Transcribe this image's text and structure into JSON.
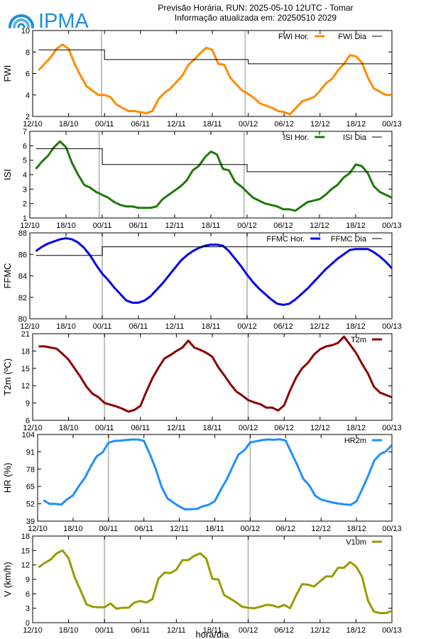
{
  "header": {
    "line1": "Previsão Horária, RUN: 2025-05-10 12UTC - Tomar",
    "line2": "Informação atualizada em: 20250510 2029",
    "logo_text": "IPMA"
  },
  "colors": {
    "fwi": "#ff8c00",
    "isi": "#1e7a0a",
    "ffmc": "#0000ee",
    "t2m": "#8b0000",
    "hr2m": "#1e90ff",
    "v10m": "#9a9a00",
    "daily": "#000000",
    "day_separator": "#c0c0c0",
    "logo": "#1e8fd6"
  },
  "xlabel": "hora/dia",
  "chart_data": [
    {
      "id": "fwi",
      "type": "line",
      "ylabel": "FWI",
      "ylim": [
        2,
        10
      ],
      "yticks": [
        2,
        4,
        6,
        8,
        10
      ],
      "xlim": [
        0,
        60
      ],
      "xticks": [
        "12/10",
        "18/10",
        "00/11",
        "06/11",
        "12/11",
        "18/11",
        "00/12",
        "06/12",
        "12/12",
        "18/12",
        "00/13"
      ],
      "legend_position": "top-right",
      "series": [
        {
          "name": "FWI Hor.",
          "style": "hourly",
          "color_key": "fwi",
          "x": [
            1,
            2,
            3,
            4,
            5,
            6,
            7,
            8,
            9,
            10,
            11,
            12,
            13,
            14,
            15,
            16,
            17,
            18,
            19,
            20,
            21,
            22,
            23,
            24,
            25,
            26,
            27,
            28,
            29,
            30,
            31,
            32,
            33,
            34,
            35,
            36,
            37,
            38,
            39,
            40,
            41,
            42,
            43,
            44,
            45,
            46,
            47,
            48,
            49,
            50,
            51,
            52,
            53,
            54,
            55,
            56,
            57,
            58,
            59,
            60
          ],
          "values": [
            6.3,
            6.9,
            7.5,
            8.3,
            8.7,
            8.3,
            6.9,
            5.8,
            4.8,
            4.4,
            4.0,
            4.0,
            3.8,
            3.1,
            2.8,
            2.5,
            2.5,
            2.4,
            2.3,
            2.5,
            3.6,
            4.2,
            4.6,
            5.2,
            5.8,
            6.8,
            7.3,
            7.9,
            8.4,
            8.2,
            6.9,
            6.8,
            5.6,
            5.0,
            4.4,
            4.1,
            3.7,
            3.2,
            3.0,
            2.8,
            2.5,
            2.4,
            2.2,
            2.8,
            3.4,
            3.6,
            3.8,
            4.4,
            5.1,
            5.5,
            6.3,
            6.9,
            7.7,
            7.6,
            7.0,
            5.6,
            4.6,
            4.3,
            4.0,
            4.0
          ]
        },
        {
          "name": "FWI Dia",
          "style": "daily",
          "color_key": "daily",
          "segments": [
            [
              1,
              12,
              8.2
            ],
            [
              12,
              36,
              7.3
            ],
            [
              36,
              60,
              6.9
            ]
          ]
        }
      ]
    },
    {
      "id": "isi",
      "type": "line",
      "ylabel": "ISI",
      "ylim": [
        1,
        7
      ],
      "yticks": [
        1,
        2,
        3,
        4,
        5,
        6,
        7
      ],
      "xlim": [
        0,
        60
      ],
      "xticks": [
        "12/10",
        "18/10",
        "00/11",
        "06/11",
        "12/11",
        "18/11",
        "00/12",
        "06/12",
        "12/12",
        "18/12",
        "00/13"
      ],
      "legend_position": "top-right",
      "series": [
        {
          "name": "ISI Hor.",
          "style": "hourly",
          "color_key": "isi",
          "x": [
            1,
            2,
            3,
            4,
            5,
            6,
            7,
            8,
            9,
            10,
            11,
            12,
            13,
            14,
            15,
            16,
            17,
            18,
            19,
            20,
            21,
            22,
            23,
            24,
            25,
            26,
            27,
            28,
            29,
            30,
            31,
            32,
            33,
            34,
            35,
            36,
            37,
            38,
            39,
            40,
            41,
            42,
            43,
            44,
            45,
            46,
            47,
            48,
            49,
            50,
            51,
            52,
            53,
            54,
            55,
            56,
            57,
            58,
            59,
            60
          ],
          "values": [
            4.4,
            4.9,
            5.3,
            5.9,
            6.3,
            5.9,
            4.8,
            4.0,
            3.3,
            3.1,
            2.8,
            2.6,
            2.4,
            2.1,
            1.9,
            1.8,
            1.8,
            1.7,
            1.7,
            1.7,
            1.8,
            2.3,
            2.6,
            2.9,
            3.2,
            3.6,
            4.3,
            4.6,
            5.2,
            5.6,
            5.4,
            4.4,
            4.3,
            3.5,
            3.2,
            2.8,
            2.4,
            2.2,
            2.0,
            1.9,
            1.8,
            1.6,
            1.6,
            1.5,
            1.8,
            2.1,
            2.2,
            2.3,
            2.6,
            3.0,
            3.3,
            3.8,
            4.1,
            4.7,
            4.6,
            4.1,
            3.2,
            2.8,
            2.6,
            2.4
          ]
        },
        {
          "name": "ISI Dia",
          "style": "daily",
          "color_key": "daily",
          "segments": [
            [
              1,
              12,
              5.8
            ],
            [
              12,
              36,
              4.7
            ],
            [
              36,
              60,
              4.2
            ]
          ]
        }
      ]
    },
    {
      "id": "ffmc",
      "type": "line",
      "ylabel": "FFMC",
      "ylim": [
        80,
        88
      ],
      "yticks": [
        80,
        82,
        84,
        86,
        88
      ],
      "xlim": [
        0,
        60
      ],
      "xticks": [
        "12/10",
        "18/10",
        "00/11",
        "06/11",
        "12/11",
        "18/11",
        "00/12",
        "06/12",
        "12/12",
        "18/12",
        "00/13"
      ],
      "legend_position": "top-right",
      "series": [
        {
          "name": "FFMC Hor.",
          "style": "hourly",
          "color_key": "ffmc",
          "x": [
            1,
            2,
            3,
            4,
            5,
            6,
            7,
            8,
            9,
            10,
            11,
            12,
            13,
            14,
            15,
            16,
            17,
            18,
            19,
            20,
            21,
            22,
            23,
            24,
            25,
            26,
            27,
            28,
            29,
            30,
            31,
            32,
            33,
            34,
            35,
            36,
            37,
            38,
            39,
            40,
            41,
            42,
            43,
            44,
            45,
            46,
            47,
            48,
            49,
            50,
            51,
            52,
            53,
            54,
            55,
            56,
            57,
            58,
            59,
            60
          ],
          "values": [
            86.3,
            86.7,
            87.0,
            87.2,
            87.4,
            87.5,
            87.4,
            87.1,
            86.6,
            85.9,
            85.0,
            84.2,
            83.6,
            82.9,
            82.3,
            81.7,
            81.5,
            81.5,
            81.7,
            82.1,
            82.7,
            83.3,
            84.0,
            84.7,
            85.4,
            85.9,
            86.3,
            86.6,
            86.8,
            86.9,
            86.9,
            86.8,
            86.3,
            85.6,
            84.9,
            84.1,
            83.4,
            82.8,
            82.3,
            81.8,
            81.4,
            81.3,
            81.4,
            81.8,
            82.3,
            82.8,
            83.4,
            84.0,
            84.6,
            85.1,
            85.6,
            86.0,
            86.4,
            86.5,
            86.5,
            86.5,
            86.2,
            85.8,
            85.3,
            84.7
          ]
        },
        {
          "name": "FFMC Dia",
          "style": "daily",
          "color_key": "daily",
          "segments": [
            [
              1,
              12,
              85.9
            ],
            [
              12,
              36,
              86.7
            ],
            [
              36,
              60,
              86.7
            ]
          ]
        }
      ]
    },
    {
      "id": "t2m",
      "type": "line",
      "ylabel": "T2m (ºC)",
      "ylim": [
        6,
        21
      ],
      "yticks": [
        6,
        9,
        12,
        15,
        18,
        21
      ],
      "xlim": [
        0,
        60
      ],
      "xticks": [
        "12/10",
        "18/10",
        "00/11",
        "06/11",
        "12/11",
        "18/11",
        "00/12",
        "06/12",
        "12/12",
        "18/12",
        "00/13"
      ],
      "legend_position": "top-right",
      "series": [
        {
          "name": "T2m",
          "style": "hourly",
          "color_key": "t2m",
          "x": [
            1,
            2,
            3,
            4,
            5,
            6,
            7,
            8,
            9,
            10,
            11,
            12,
            13,
            14,
            15,
            16,
            17,
            18,
            19,
            20,
            21,
            22,
            23,
            24,
            25,
            26,
            27,
            28,
            29,
            30,
            31,
            32,
            33,
            34,
            35,
            36,
            37,
            38,
            39,
            40,
            41,
            42,
            43,
            44,
            45,
            46,
            47,
            48,
            49,
            50,
            51,
            52,
            53,
            54,
            55,
            56,
            57,
            58,
            59,
            60
          ],
          "values": [
            18.8,
            18.8,
            18.6,
            18.4,
            17.5,
            16.5,
            15.0,
            13.5,
            11.8,
            10.6,
            10.0,
            9.0,
            8.7,
            8.4,
            8.0,
            7.5,
            7.8,
            8.5,
            11.0,
            13.3,
            15.1,
            16.7,
            17.3,
            18.0,
            18.6,
            19.8,
            18.6,
            18.2,
            17.7,
            17.0,
            15.2,
            13.8,
            12.3,
            11.0,
            10.3,
            9.5,
            9.1,
            8.8,
            8.2,
            8.2,
            7.7,
            8.6,
            11.2,
            13.4,
            15.0,
            16.0,
            17.4,
            18.3,
            18.8,
            19.0,
            19.4,
            20.5,
            19.1,
            17.7,
            15.8,
            14.1,
            11.8,
            10.8,
            10.4,
            10.0
          ]
        }
      ]
    },
    {
      "id": "hr2m",
      "type": "line",
      "ylabel": "HR (%)",
      "ylim": [
        39,
        104
      ],
      "yticks": [
        39,
        52,
        65,
        78,
        91,
        104
      ],
      "xlim": [
        0,
        60
      ],
      "xticks": [
        "12/10",
        "18/10",
        "00/11",
        "06/11",
        "12/11",
        "18/11",
        "00/12",
        "06/12",
        "12/12",
        "18/12",
        "00/13"
      ],
      "legend_position": "top-right",
      "series": [
        {
          "name": "HR2m",
          "style": "hourly",
          "color_key": "hr2m",
          "x": [
            1,
            2,
            3,
            4,
            5,
            6,
            7,
            8,
            9,
            10,
            11,
            12,
            13,
            14,
            15,
            16,
            17,
            18,
            19,
            20,
            21,
            22,
            23,
            24,
            25,
            26,
            27,
            28,
            29,
            30,
            31,
            32,
            33,
            34,
            35,
            36,
            37,
            38,
            39,
            40,
            41,
            42,
            43,
            44,
            45,
            46,
            47,
            48,
            49,
            50,
            51,
            52,
            53,
            54,
            55,
            56,
            57,
            58,
            59,
            60
          ],
          "values": [
            54.7,
            52.0,
            52.0,
            51.4,
            55.4,
            58.4,
            65.4,
            71.5,
            80.1,
            87.6,
            90.6,
            97.8,
            99.2,
            99.4,
            99.9,
            100.3,
            100.3,
            99.2,
            89.4,
            78.2,
            64.6,
            56.0,
            52.9,
            50.0,
            47.8,
            48.0,
            48.2,
            50.2,
            51.3,
            54.0,
            62.5,
            70.1,
            79.7,
            88.9,
            92.1,
            98.1,
            98.9,
            99.8,
            100.3,
            100.1,
            100.4,
            99.5,
            90.1,
            80.8,
            70.6,
            65.9,
            58.1,
            55.2,
            54.0,
            52.9,
            52.1,
            51.6,
            51.2,
            53.8,
            63.4,
            73.3,
            84.4,
            89.3,
            91.4,
            96.1
          ]
        }
      ]
    },
    {
      "id": "v10m",
      "type": "line",
      "ylabel": "V (km/h)",
      "ylim": [
        0,
        18
      ],
      "yticks": [
        0,
        3,
        6,
        9,
        12,
        15,
        18
      ],
      "xlim": [
        0,
        60
      ],
      "xticks": [
        "12/10",
        "18/10",
        "00/11",
        "06/11",
        "12/11",
        "18/11",
        "00/12",
        "06/12",
        "12/12",
        "18/12",
        "00/13"
      ],
      "legend_position": "top-right",
      "series": [
        {
          "name": "V10m",
          "style": "hourly",
          "color_key": "v10m",
          "x": [
            1,
            2,
            3,
            4,
            5,
            6,
            7,
            8,
            9,
            10,
            11,
            12,
            13,
            14,
            15,
            16,
            17,
            18,
            19,
            20,
            21,
            22,
            23,
            24,
            25,
            26,
            27,
            28,
            29,
            30,
            31,
            32,
            33,
            34,
            35,
            36,
            37,
            38,
            39,
            40,
            41,
            42,
            43,
            44,
            45,
            46,
            47,
            48,
            49,
            50,
            51,
            52,
            53,
            54,
            55,
            56,
            57,
            58,
            59,
            60
          ],
          "values": [
            11.5,
            12.4,
            13.1,
            14.4,
            15.0,
            13.4,
            9.5,
            6.7,
            3.8,
            3.3,
            3.2,
            3.2,
            4.0,
            2.9,
            3.1,
            3.1,
            4.2,
            4.5,
            4.2,
            4.9,
            9.1,
            10.4,
            10.3,
            11.0,
            13.0,
            13.0,
            13.9,
            14.4,
            13.3,
            9.1,
            9.0,
            5.7,
            5.0,
            4.2,
            3.3,
            3.1,
            3.0,
            3.3,
            3.7,
            3.6,
            3.2,
            3.7,
            3.0,
            5.7,
            8.0,
            7.9,
            7.5,
            8.6,
            9.6,
            9.6,
            11.4,
            11.4,
            12.6,
            11.7,
            9.6,
            4.6,
            2.3,
            2.0,
            2.0,
            2.4
          ]
        }
      ]
    }
  ]
}
